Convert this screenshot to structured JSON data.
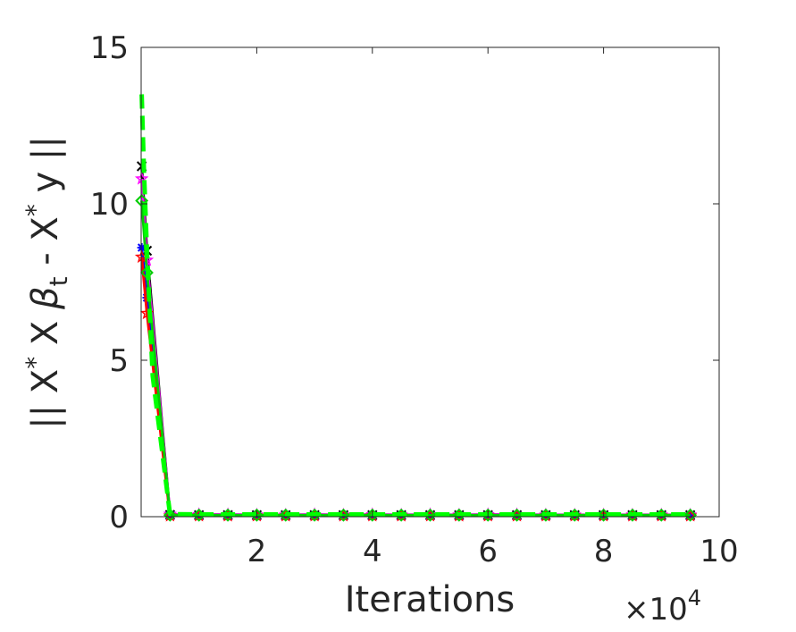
{
  "chart_data": {
    "type": "line",
    "xlabel": "Iterations",
    "ylabel": "|| X* X βt - X* y ||",
    "ylabel_parts": {
      "open": "|| X",
      "sup1": "*",
      "x": " X ",
      "beta": "β",
      "sub": "t",
      "minus": " - X",
      "sup2": "*",
      "tail": " y ||"
    },
    "x_multiplier": {
      "times": "×10",
      "exponent": "4"
    },
    "xlim": [
      0,
      100000
    ],
    "ylim": [
      0,
      15
    ],
    "xticks": [
      {
        "value": 20000,
        "label": "2"
      },
      {
        "value": 40000,
        "label": "4"
      },
      {
        "value": 60000,
        "label": "6"
      },
      {
        "value": 80000,
        "label": "8"
      },
      {
        "value": 100000,
        "label": "10"
      }
    ],
    "yticks": [
      {
        "value": 0,
        "label": "0"
      },
      {
        "value": 5,
        "label": "5"
      },
      {
        "value": 10,
        "label": "10"
      },
      {
        "value": 15,
        "label": "15"
      }
    ],
    "grid": false,
    "series": [
      {
        "color": "#000000",
        "marker": "x",
        "dash": "solid",
        "x": [
          100,
          1000,
          5000,
          10000,
          15000,
          20000,
          25000,
          30000,
          35000,
          40000,
          45000,
          50000,
          55000,
          60000,
          65000,
          70000,
          75000,
          80000,
          85000,
          90000,
          95000
        ],
        "y": [
          11.2,
          8.5,
          0.06,
          0.05,
          0.05,
          0.05,
          0.05,
          0.05,
          0.05,
          0.05,
          0.05,
          0.05,
          0.05,
          0.05,
          0.05,
          0.05,
          0.05,
          0.05,
          0.05,
          0.05,
          0.05
        ]
      },
      {
        "color": "#ff00ff",
        "marker": "star",
        "dash": "solid",
        "x": [
          100,
          1000,
          5000,
          10000,
          15000,
          20000,
          25000,
          30000,
          35000,
          40000,
          45000,
          50000,
          55000,
          60000,
          65000,
          70000,
          75000,
          80000,
          85000,
          90000,
          95000
        ],
        "y": [
          10.8,
          8.2,
          0.08,
          0.07,
          0.07,
          0.06,
          0.06,
          0.07,
          0.06,
          0.07,
          0.06,
          0.07,
          0.06,
          0.07,
          0.07,
          0.06,
          0.06,
          0.06,
          0.06,
          0.06,
          0.06
        ]
      },
      {
        "color": "#0000ff",
        "marker": "asterisk",
        "dash": "solid",
        "x": [
          100,
          1000,
          5000,
          10000,
          15000,
          20000,
          25000,
          30000,
          35000,
          40000,
          45000,
          50000,
          55000,
          60000,
          65000,
          70000,
          75000,
          80000,
          85000,
          90000,
          95000
        ],
        "y": [
          8.6,
          7.0,
          0.04,
          0.04,
          0.04,
          0.04,
          0.04,
          0.04,
          0.04,
          0.04,
          0.04,
          0.04,
          0.04,
          0.04,
          0.04,
          0.04,
          0.04,
          0.04,
          0.04,
          0.04,
          0.04
        ]
      },
      {
        "color": "#ff0000",
        "marker": "star",
        "dash": "solid",
        "x": [
          100,
          1000,
          5000,
          10000,
          15000,
          20000,
          25000,
          30000,
          35000,
          40000,
          45000,
          50000,
          55000,
          60000,
          65000,
          70000,
          75000,
          80000,
          85000,
          90000,
          95000
        ],
        "y": [
          8.3,
          6.5,
          0.03,
          0.03,
          0.03,
          0.03,
          0.03,
          0.03,
          0.03,
          0.03,
          0.03,
          0.03,
          0.03,
          0.03,
          0.03,
          0.03,
          0.03,
          0.03,
          0.03,
          0.03,
          0.03
        ]
      },
      {
        "color": "#00cc00",
        "marker": "diamond",
        "dash": "solid",
        "x": [
          100,
          1000,
          5000,
          10000,
          15000,
          20000,
          25000,
          30000,
          35000,
          40000,
          45000,
          50000,
          55000,
          60000,
          65000,
          70000,
          75000,
          80000,
          85000,
          90000,
          95000
        ],
        "y": [
          10.1,
          7.8,
          0.05,
          0.05,
          0.05,
          0.05,
          0.05,
          0.05,
          0.05,
          0.05,
          0.05,
          0.05,
          0.05,
          0.05,
          0.05,
          0.05,
          0.05,
          0.05,
          0.05,
          0.05,
          0.05
        ]
      },
      {
        "color": "#00ff00",
        "marker": "none",
        "dash": "dashed",
        "x": [
          100,
          500,
          1000,
          2000,
          5000,
          10000,
          15000,
          20000,
          25000,
          30000,
          35000,
          40000,
          45000,
          50000,
          55000,
          60000,
          65000,
          70000,
          75000,
          80000,
          85000,
          90000,
          95000
        ],
        "y": [
          13.5,
          11.0,
          8.5,
          4.5,
          0.08,
          0.07,
          0.07,
          0.07,
          0.07,
          0.07,
          0.07,
          0.07,
          0.07,
          0.07,
          0.07,
          0.07,
          0.07,
          0.07,
          0.07,
          0.07,
          0.07,
          0.07,
          0.07
        ]
      }
    ]
  }
}
